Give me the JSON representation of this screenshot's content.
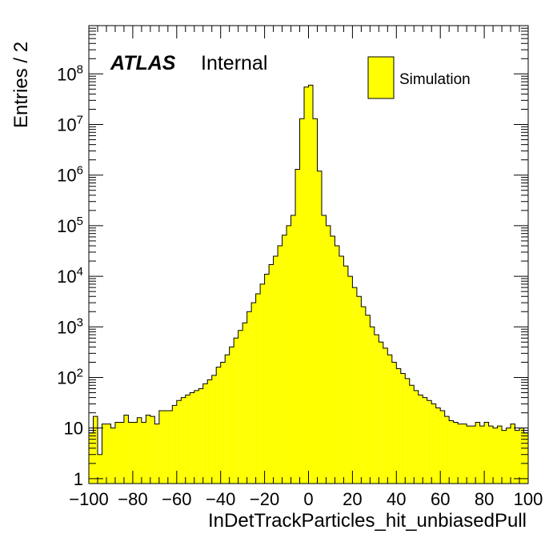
{
  "chart_data": {
    "type": "bar",
    "histogram": true,
    "xlabel": "InDetTrackParticles_hit_unbiasedPull",
    "ylabel": "Entries / 2",
    "xlim": [
      -100,
      100
    ],
    "ylim": [
      0.8,
      900000000
    ],
    "yscale": "log",
    "bin_width": 2,
    "x_tick_labels": [
      "−100",
      "−80",
      "−60",
      "−40",
      "−20",
      "0",
      "20",
      "40",
      "60",
      "80",
      "100"
    ],
    "x_tick_values": [
      -100,
      -80,
      -60,
      -40,
      -20,
      0,
      20,
      40,
      60,
      80,
      100
    ],
    "y_tick_labels": [
      {
        "value": 1,
        "base": "1",
        "exp": ""
      },
      {
        "value": 10,
        "base": "10",
        "exp": ""
      },
      {
        "value": 100,
        "base": "10",
        "exp": "2"
      },
      {
        "value": 1000,
        "base": "10",
        "exp": "3"
      },
      {
        "value": 10000,
        "base": "10",
        "exp": "4"
      },
      {
        "value": 100000,
        "base": "10",
        "exp": "5"
      },
      {
        "value": 1000000,
        "base": "10",
        "exp": "6"
      },
      {
        "value": 10000000,
        "base": "10",
        "exp": "7"
      },
      {
        "value": 100000000,
        "base": "10",
        "exp": "8"
      }
    ],
    "grid": false,
    "legend_position": "top-right",
    "fill_color": "#ffff00",
    "edge_color": "#000000",
    "series": [
      {
        "name": "Simulation",
        "bin_low_edges": [
          -100,
          -98,
          -96,
          -94,
          -92,
          -90,
          -88,
          -86,
          -84,
          -82,
          -80,
          -78,
          -76,
          -74,
          -72,
          -70,
          -68,
          -66,
          -64,
          -62,
          -60,
          -58,
          -56,
          -54,
          -52,
          -50,
          -48,
          -46,
          -44,
          -42,
          -40,
          -38,
          -36,
          -34,
          -32,
          -30,
          -28,
          -26,
          -24,
          -22,
          -20,
          -18,
          -16,
          -14,
          -12,
          -10,
          -8,
          -6,
          -4,
          -2,
          0,
          2,
          4,
          6,
          8,
          10,
          12,
          14,
          16,
          18,
          20,
          22,
          24,
          26,
          28,
          30,
          32,
          34,
          36,
          38,
          40,
          42,
          44,
          46,
          48,
          50,
          52,
          54,
          56,
          58,
          60,
          62,
          64,
          66,
          68,
          70,
          72,
          74,
          76,
          78,
          80,
          82,
          84,
          86,
          88,
          90,
          92,
          94,
          96,
          98
        ],
        "values": [
          8,
          17,
          3,
          12,
          12,
          10,
          13,
          13,
          18,
          13,
          13,
          16,
          13,
          18,
          17,
          12,
          22,
          22,
          22,
          28,
          35,
          40,
          45,
          50,
          55,
          60,
          75,
          90,
          110,
          160,
          200,
          280,
          400,
          600,
          850,
          1200,
          2000,
          3000,
          4500,
          7000,
          11000,
          17000,
          25000,
          40000,
          65000,
          100000,
          160000,
          1300000,
          13000000,
          55000000,
          60000000,
          13000000,
          1200000,
          160000,
          100000,
          62000,
          40000,
          25000,
          16000,
          10000,
          6000,
          4000,
          2500,
          1700,
          1000,
          700,
          500,
          380,
          280,
          200,
          150,
          120,
          95,
          70,
          55,
          45,
          40,
          35,
          30,
          25,
          22,
          17,
          14,
          13,
          12,
          12,
          11,
          11,
          13,
          11,
          13,
          11,
          10,
          11,
          9,
          10,
          12,
          9,
          10,
          8
        ]
      }
    ],
    "annotations": {
      "atlas": "ATLAS",
      "internal": "Internal"
    }
  }
}
